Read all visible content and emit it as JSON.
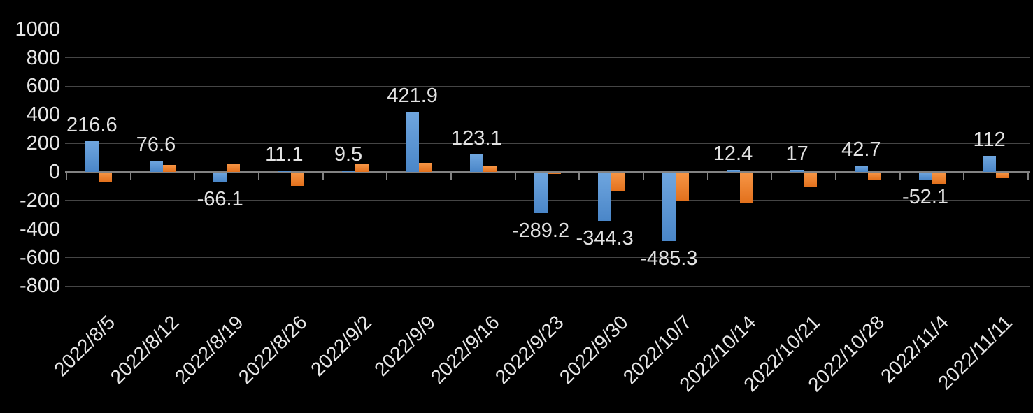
{
  "chart_data": {
    "type": "bar",
    "title": "",
    "categories": [
      "2022/8/5",
      "2022/8/12",
      "2022/8/19",
      "2022/8/26",
      "2022/9/2",
      "2022/9/9",
      "2022/9/16",
      "2022/9/23",
      "2022/9/30",
      "2022/10/7",
      "2022/10/14",
      "2022/10/21",
      "2022/10/28",
      "2022/11/4",
      "2022/11/11"
    ],
    "series": [
      {
        "name": "series-1-blue",
        "values": [
          216.6,
          76.6,
          -66.1,
          11.1,
          9.5,
          421.9,
          123.1,
          -289.2,
          -344.3,
          -485.3,
          12.4,
          17,
          42.7,
          -52.1,
          112
        ],
        "data_labels": [
          "216.6",
          "76.6",
          "-66.1",
          "11.1",
          "9.5",
          "421.9",
          "123.1",
          "-289.2",
          "-344.3",
          "-485.3",
          "12.4",
          "17",
          "42.7",
          "-52.1",
          "112"
        ],
        "color_top": "#6FA6DF",
        "color_bottom": "#4A86C8"
      },
      {
        "name": "series-2-orange",
        "values": [
          -70,
          47,
          60,
          -97,
          55,
          63,
          40,
          -12,
          -138,
          -205,
          -220,
          -110,
          -55,
          -82,
          -45
        ],
        "data_labels": [],
        "color_top": "#F79646",
        "color_bottom": "#E2701C"
      }
    ],
    "xlabel": "",
    "ylabel": "",
    "ylim": [
      -800,
      1000
    ],
    "ytick_interval": 200,
    "yticks": [
      "1000",
      "800",
      "600",
      "400",
      "200",
      "0",
      "-200",
      "-400",
      "-600",
      "-800"
    ],
    "grid": true,
    "legend": false,
    "x_label_rotation_deg": 45,
    "colors": {
      "background": "#000000",
      "text": "#E6E6E6",
      "gridline": "#454545",
      "axis": "#828282"
    }
  }
}
